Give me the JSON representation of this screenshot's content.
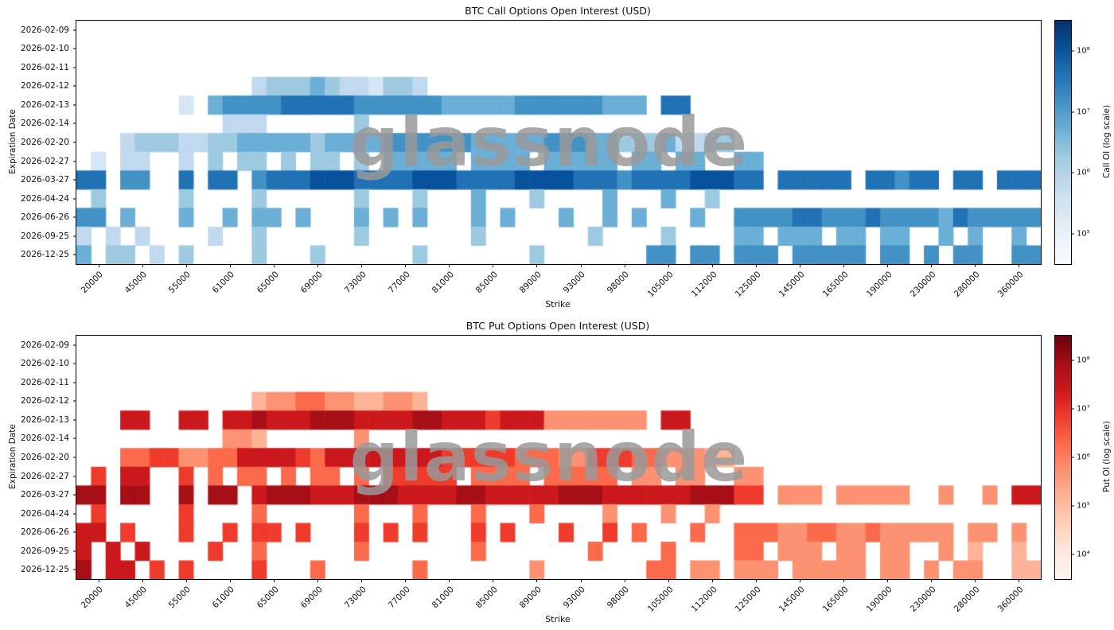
{
  "watermark": "glassnode",
  "chart_data": [
    {
      "type": "heatmap",
      "id": "btc-call-oi",
      "title": "BTC Call Options Open Interest (USD)",
      "xlabel": "Strike",
      "ylabel": "Expiration Date",
      "colorbar_label": "Call OI (log scale)",
      "colorbar_ticks": [
        "10⁸",
        "10⁷",
        "10⁶",
        "10⁵"
      ],
      "rows": [
        "2026-02-09",
        "2026-02-10",
        "2026-02-11",
        "2026-02-12",
        "2026-02-13",
        "2026-02-14",
        "2026-02-20",
        "2026-02-27",
        "2026-03-27",
        "2026-04-24",
        "2026-06-26",
        "2026-09-25",
        "2026-12-25"
      ],
      "cols": [
        "20000",
        "45000",
        "55000",
        "61000",
        "65000",
        "69000",
        "73000",
        "77000",
        "81000",
        "85000",
        "89000",
        "93000",
        "98000",
        "105000",
        "112000",
        "125000",
        "145000",
        "165000",
        "190000",
        "230000",
        "280000",
        "360000"
      ],
      "value_scale": "log scale USD open interest; grid chars: '.' = no OI, digits 1-9 ≈ 3e4, 1e5, 3e5, 1e6, 3e6, 1e7, 3e7, 1e8, 3e8 USD",
      "cmap_under": "#f7fbff",
      "palette": [
        "#eaf2fb",
        "#d6e6f4",
        "#c0d9ee",
        "#9ecae1",
        "#6baed6",
        "#4292c6",
        "#2171b5",
        "#08519c",
        "#08306b"
      ],
      "grid": [
        "..................................................................",
        "..................................................................",
        "..................................................................",
        "............344454332443..........................................",
        ".......2.566667777766666655555666666555.77........................",
        "..........333......4..............................................",
        "...344433445555545555666666555556665544453344.....................",
        ".2.33..3.4.44.4.44.4.55555.5555.55555.55.55..55...................",
        "77.66..7.77.67778887777888777788887776777788877.77777.77677.77.777",
        ".4.....4....4......4...4...5...4....5...5..4......................",
        "66.5...5..5.55.5...5.5.5...5.5...5..5.5...5..666677666766665766666",
        "3.3.3....3..4......4.......4.......4....4....55.555.55.55..5.5..5.",
        "5.44.3.4....4...4......4.......4.......66.66.666.66666.66.6.66..66"
      ]
    },
    {
      "type": "heatmap",
      "id": "btc-put-oi",
      "title": "BTC Put Options Open Interest (USD)",
      "xlabel": "Strike",
      "ylabel": "Expiration Date",
      "colorbar_label": "Put OI (log scale)",
      "colorbar_ticks": [
        "10⁸",
        "10⁷",
        "10⁶",
        "10⁵",
        "10⁴"
      ],
      "rows": [
        "2026-02-09",
        "2026-02-10",
        "2026-02-11",
        "2026-02-12",
        "2026-02-13",
        "2026-02-14",
        "2026-02-20",
        "2026-02-27",
        "2026-03-27",
        "2026-04-24",
        "2026-06-26",
        "2026-09-25",
        "2026-12-25"
      ],
      "cols": [
        "20000",
        "45000",
        "55000",
        "61000",
        "65000",
        "69000",
        "73000",
        "77000",
        "81000",
        "85000",
        "89000",
        "93000",
        "98000",
        "105000",
        "112000",
        "125000",
        "145000",
        "165000",
        "190000",
        "230000",
        "280000",
        "360000"
      ],
      "value_scale": "log scale USD open interest; grid chars: '.' = no OI, digits 1-9 ≈ 3e4, 1e5, 3e5, 1e6, 3e6, 1e7, 3e7, 1e8, 3e8 USD",
      "cmap_under": "#fff5f0",
      "palette": [
        "#fee8dd",
        "#fdd0bc",
        "#fcb398",
        "#fc9272",
        "#fb6a4a",
        "#ef3b2c",
        "#cb181d",
        "#a50f15",
        "#67000d"
      ],
      "grid": [
        "..................................................................",
        "..................................................................",
        "..................................................................",
        "............344554433443..........................................",
        "...77..77.77877788877778877767774444444.77........................",
        "..........443......4..............................................",
        "...556644557777657777777766666555446665544433.....................",
        ".6.77..6.5.55.5.55.5.66666.5555.55555.44.44..44...................",
        "88.88..8.88.78887778887777887777788877777788866.444.44444..4..4.77",
        ".6.....6....5......5...5...5...5....4...4..4......................",
        "77.6...6..6.66.6...6.6.6...6.6...6..6.5...5..555445544544444.44.4.",
        "7.7.7....6..5......5.......5.......5....5....55.444.44.44..4.3..3.",
        "8.77.6.6....6...5......5.......4.......55.44.444.44444.44.4.44..33"
      ]
    }
  ]
}
